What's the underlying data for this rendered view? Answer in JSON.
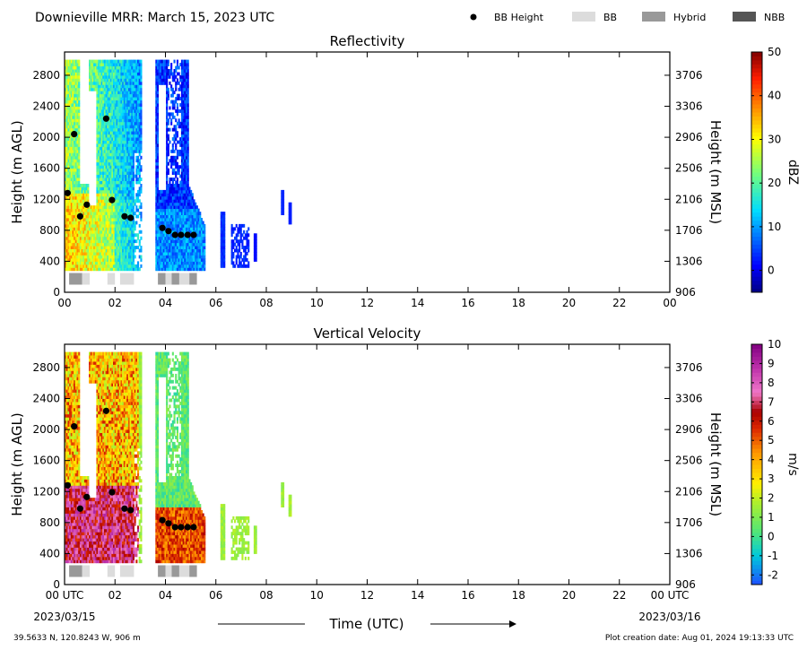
{
  "header": {
    "title": "Downieville MRR:  March 15, 2023 UTC",
    "legend": [
      {
        "label": "BB Height",
        "kind": "dot",
        "color": "#000000"
      },
      {
        "label": "BB",
        "kind": "box",
        "color": "#dcdcdc"
      },
      {
        "label": "Hybrid",
        "kind": "box",
        "color": "#999999"
      },
      {
        "label": "NBB",
        "kind": "box",
        "color": "#555555"
      }
    ]
  },
  "footer": {
    "location": "39.5633 N, 120.8243 W, 906 m",
    "created": "Plot creation date: Aug 01, 2024 19:13:33 UTC",
    "start_date": "2023/03/15",
    "end_date": "2023/03/16",
    "xlabel": "Time (UTC)"
  },
  "chart_data": [
    {
      "type": "heatmap",
      "title": "Reflectivity",
      "ylabel": "Height (m AGL)",
      "y2label": "Height (m MSL)",
      "xlim": [
        0,
        24
      ],
      "ylim": [
        0,
        3100
      ],
      "x_ticks": [
        "00",
        "02",
        "04",
        "06",
        "08",
        "10",
        "12",
        "14",
        "16",
        "18",
        "20",
        "22",
        "00"
      ],
      "y_ticks": [
        0,
        400,
        800,
        1200,
        1600,
        2000,
        2400,
        2800
      ],
      "y2_ticks": [
        906,
        1306,
        1706,
        2106,
        2506,
        2906,
        3306,
        3706
      ],
      "colorbar": {
        "label": "dBZ",
        "min": -5,
        "max": 50,
        "ticks": [
          0,
          10,
          20,
          30,
          40,
          50
        ]
      },
      "bb_height_points": [
        {
          "t": 0.12,
          "h": 1280
        },
        {
          "t": 0.38,
          "h": 2040
        },
        {
          "t": 0.62,
          "h": 980
        },
        {
          "t": 0.88,
          "h": 1130
        },
        {
          "t": 1.65,
          "h": 2240
        },
        {
          "t": 1.88,
          "h": 1190
        },
        {
          "t": 2.38,
          "h": 980
        },
        {
          "t": 2.62,
          "h": 960
        },
        {
          "t": 3.88,
          "h": 830
        },
        {
          "t": 4.12,
          "h": 790
        },
        {
          "t": 4.38,
          "h": 740
        },
        {
          "t": 4.62,
          "h": 740
        },
        {
          "t": 4.88,
          "h": 740
        },
        {
          "t": 5.12,
          "h": 740
        }
      ],
      "bb_type_blocks": [
        {
          "t0": 0.18,
          "t1": 0.7,
          "type": "Hybrid"
        },
        {
          "t0": 0.7,
          "t1": 1.0,
          "type": "BB"
        },
        {
          "t0": 1.7,
          "t1": 2.0,
          "type": "BB"
        },
        {
          "t0": 2.2,
          "t1": 2.75,
          "type": "BB"
        },
        {
          "t0": 3.7,
          "t1": 4.0,
          "type": "Hybrid"
        },
        {
          "t0": 4.0,
          "t1": 4.25,
          "type": "BB"
        },
        {
          "t0": 4.25,
          "t1": 4.55,
          "type": "Hybrid"
        },
        {
          "t0": 4.55,
          "t1": 4.95,
          "type": "BB"
        },
        {
          "t0": 4.95,
          "t1": 5.25,
          "type": "Hybrid"
        }
      ]
    },
    {
      "type": "heatmap",
      "title": "Vertical Velocity",
      "ylabel": "Height (m AGL)",
      "y2label": "Height (m MSL)",
      "xlim": [
        0,
        24
      ],
      "ylim": [
        0,
        3100
      ],
      "x_ticks": [
        "00 UTC",
        "02",
        "04",
        "06",
        "08",
        "10",
        "12",
        "14",
        "16",
        "18",
        "20",
        "22",
        "00 UTC"
      ],
      "y_ticks": [
        0,
        400,
        800,
        1200,
        1600,
        2000,
        2400,
        2800
      ],
      "y2_ticks": [
        906,
        1306,
        1706,
        2106,
        2506,
        2906,
        3306,
        3706
      ],
      "colorbar": {
        "label": "m/s",
        "min": -2.5,
        "max": 10,
        "ticks": [
          -2,
          -1,
          0,
          1,
          2,
          3,
          4,
          5,
          6,
          7,
          8,
          9,
          10
        ]
      },
      "bb_height_points": [
        {
          "t": 0.12,
          "h": 1280
        },
        {
          "t": 0.38,
          "h": 2040
        },
        {
          "t": 0.62,
          "h": 980
        },
        {
          "t": 0.88,
          "h": 1130
        },
        {
          "t": 1.65,
          "h": 2240
        },
        {
          "t": 1.88,
          "h": 1190
        },
        {
          "t": 2.38,
          "h": 980
        },
        {
          "t": 2.62,
          "h": 960
        },
        {
          "t": 3.88,
          "h": 830
        },
        {
          "t": 4.12,
          "h": 790
        },
        {
          "t": 4.38,
          "h": 740
        },
        {
          "t": 4.62,
          "h": 740
        },
        {
          "t": 4.88,
          "h": 740
        },
        {
          "t": 5.12,
          "h": 740
        }
      ],
      "bb_type_blocks": [
        {
          "t0": 0.18,
          "t1": 0.7,
          "type": "Hybrid"
        },
        {
          "t0": 0.7,
          "t1": 1.0,
          "type": "BB"
        },
        {
          "t0": 1.7,
          "t1": 2.0,
          "type": "BB"
        },
        {
          "t0": 2.2,
          "t1": 2.75,
          "type": "BB"
        },
        {
          "t0": 3.7,
          "t1": 4.0,
          "type": "Hybrid"
        },
        {
          "t0": 4.0,
          "t1": 4.25,
          "type": "BB"
        },
        {
          "t0": 4.25,
          "t1": 4.55,
          "type": "Hybrid"
        },
        {
          "t0": 4.55,
          "t1": 4.95,
          "type": "BB"
        },
        {
          "t0": 4.95,
          "t1": 5.25,
          "type": "Hybrid"
        }
      ]
    }
  ]
}
